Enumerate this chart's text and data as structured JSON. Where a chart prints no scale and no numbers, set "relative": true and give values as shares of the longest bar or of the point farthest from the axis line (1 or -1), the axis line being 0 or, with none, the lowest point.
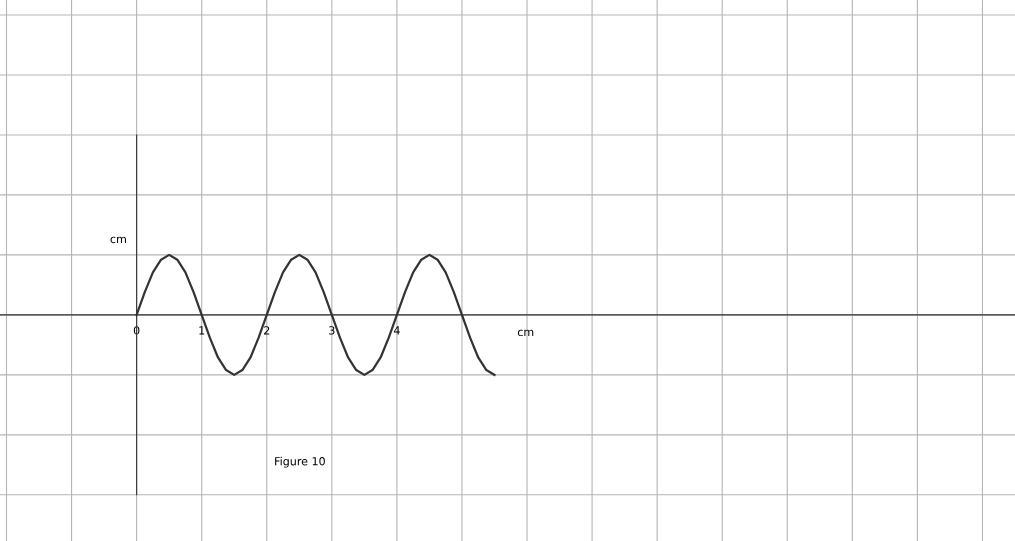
{
  "chart_data": {
    "type": "line",
    "relative": true,
    "xlabel": "cm",
    "ylabel": "cm",
    "annotations": [
      "Figure 10"
    ],
    "xlim": [
      -2.1,
      13.5
    ],
    "xticks": [
      {
        "value": -2,
        "label": null
      },
      {
        "value": -1,
        "label": null
      },
      0,
      1,
      2,
      3,
      4,
      {
        "value": 5,
        "label": null
      },
      {
        "value": 6,
        "label": null
      },
      {
        "value": 7,
        "label": null
      },
      {
        "value": 8,
        "label": null
      },
      {
        "value": 9,
        "label": null
      },
      {
        "value": 10,
        "label": null
      },
      {
        "value": 11,
        "label": null
      },
      {
        "value": 12,
        "label": null
      },
      {
        "value": 13,
        "label": null
      }
    ],
    "grid": true,
    "series": [
      {
        "color": "#333333",
        "x": [
          0,
          0.125,
          0.25,
          0.375,
          0.5,
          0.625,
          0.75,
          0.875,
          1,
          1.125,
          1.25,
          1.375,
          1.5,
          1.625,
          1.75,
          1.875,
          2,
          2.125,
          2.25,
          2.375,
          2.5,
          2.625,
          2.75,
          2.875,
          3,
          3.125,
          3.25,
          3.375,
          3.5,
          3.625,
          3.75,
          3.875,
          4,
          4.125,
          4.25,
          4.375,
          4.5,
          4.625,
          4.75,
          4.875,
          5,
          5.125,
          5.25,
          5.375,
          5.5
        ],
        "values": [
          0,
          0.38,
          0.71,
          0.92,
          1,
          0.92,
          0.71,
          0.38,
          0,
          -0.38,
          -0.71,
          -0.92,
          -1,
          -0.92,
          -0.71,
          -0.38,
          0,
          0.38,
          0.71,
          0.92,
          1,
          0.92,
          0.71,
          0.38,
          0,
          -0.38,
          -0.71,
          -0.92,
          -1,
          -0.92,
          -0.71,
          -0.38,
          0,
          0.38,
          0.71,
          0.92,
          1,
          0.92,
          0.71,
          0.38,
          0,
          -0.38,
          -0.71,
          -0.92,
          -1
        ]
      }
    ]
  }
}
